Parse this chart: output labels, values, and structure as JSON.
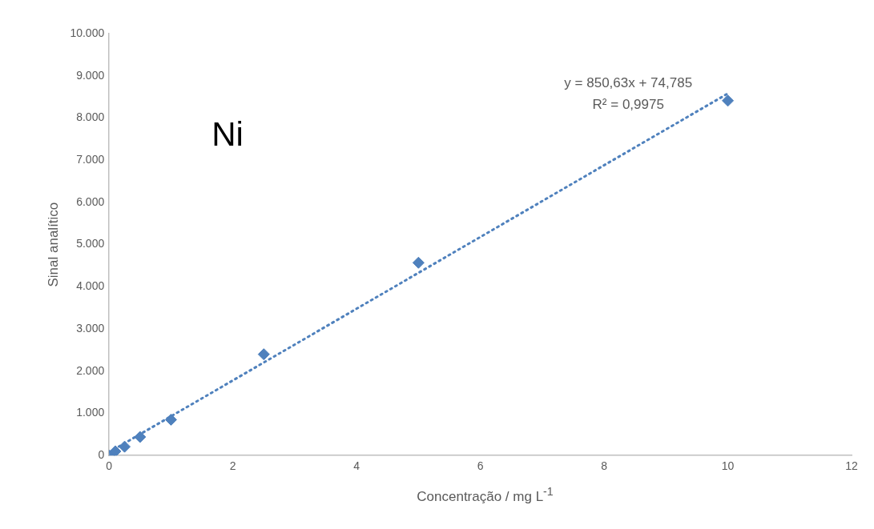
{
  "chart_data": {
    "type": "scatter",
    "xlabel": "Concentração / mg L$^{-1}$",
    "ylabel": "Sinal analítico",
    "x": [
      0,
      0.1,
      0.25,
      0.5,
      1,
      2.5,
      5,
      10
    ],
    "series": [
      {
        "type": "scatter",
        "color": "#4f81bd",
        "values": [
          0,
          100,
          210,
          440,
          850,
          2400,
          4570,
          8410
        ],
        "marker": "diamond"
      },
      {
        "type": "line",
        "color": "#4f81bd",
        "x": [
          0,
          10
        ],
        "values": [
          80,
          8580
        ],
        "line_style": "dotted",
        "marker": "none"
      }
    ],
    "xlim": [
      0,
      12
    ],
    "xticks": [
      0,
      2,
      4,
      6,
      8,
      10,
      12
    ],
    "ylim": [
      0,
      10000
    ],
    "yticks": [
      0,
      {
        "value": 1000,
        "label": "1.000"
      },
      {
        "value": 2000,
        "label": "2.000"
      },
      {
        "value": 3000,
        "label": "3.000"
      },
      {
        "value": 4000,
        "label": "4.000"
      },
      {
        "value": 5000,
        "label": "5.000"
      },
      {
        "value": 6000,
        "label": "6.000"
      },
      {
        "value": 7000,
        "label": "7.000"
      },
      {
        "value": 8000,
        "label": "8.000"
      },
      {
        "value": 9000,
        "label": "9.000"
      },
      {
        "value": 10000,
        "label": "10.000"
      }
    ],
    "grid": false,
    "legend": false,
    "annotations": [
      "Ni",
      "y = 850,63x + 74,785",
      "R² = 0,9975"
    ]
  }
}
